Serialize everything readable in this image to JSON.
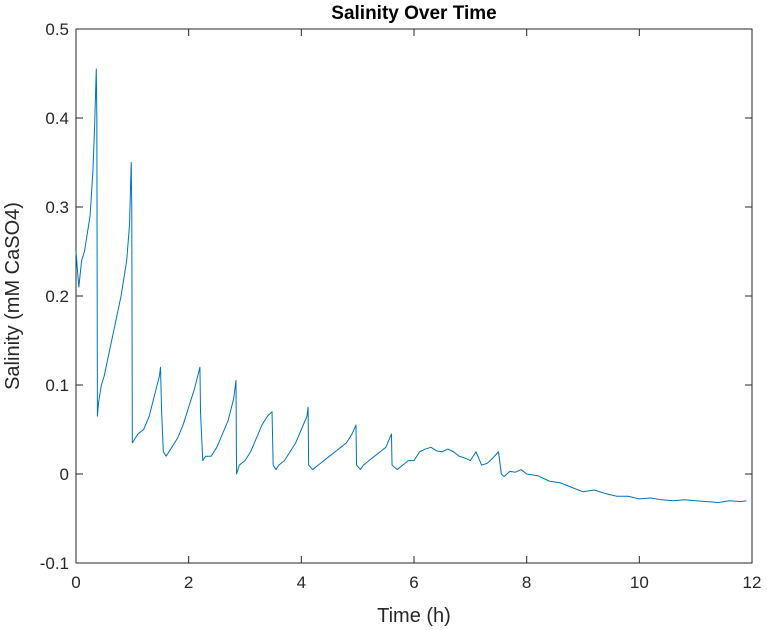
{
  "chart_data": {
    "type": "line",
    "title": "Salinity Over Time",
    "xlabel": "Time (h)",
    "ylabel": "Salinity (mM CaSO4)",
    "xlim": [
      0,
      12
    ],
    "ylim": [
      -0.1,
      0.5
    ],
    "x_ticks": [
      "0",
      "2",
      "4",
      "6",
      "8",
      "10",
      "12"
    ],
    "y_ticks": [
      "-0.1",
      "0",
      "0.1",
      "0.2",
      "0.3",
      "0.4",
      "0.5"
    ],
    "grid": false,
    "legend": "none",
    "line_color": "#0072BD",
    "series": [
      {
        "x": [
          0.0,
          0.05,
          0.1,
          0.15,
          0.2,
          0.25,
          0.3,
          0.33,
          0.36,
          0.37,
          0.38,
          0.4,
          0.45,
          0.5,
          0.6,
          0.7,
          0.8,
          0.9,
          0.95,
          0.98,
          0.99,
          1.0,
          1.05,
          1.1,
          1.2,
          1.3,
          1.4,
          1.48,
          1.5,
          1.52,
          1.55,
          1.6,
          1.7,
          1.8,
          1.9,
          2.0,
          2.1,
          2.2,
          2.21,
          2.25,
          2.3,
          2.4,
          2.5,
          2.6,
          2.7,
          2.8,
          2.84,
          2.85,
          2.9,
          3.0,
          3.1,
          3.2,
          3.3,
          3.4,
          3.48,
          3.5,
          3.55,
          3.6,
          3.7,
          3.8,
          3.9,
          4.0,
          4.1,
          4.12,
          4.13,
          4.2,
          4.3,
          4.4,
          4.5,
          4.6,
          4.7,
          4.8,
          4.9,
          4.97,
          4.98,
          5.05,
          5.1,
          5.2,
          5.3,
          5.4,
          5.5,
          5.6,
          5.61,
          5.7,
          5.8,
          5.9,
          6.0,
          6.1,
          6.2,
          6.3,
          6.4,
          6.5,
          6.6,
          6.7,
          6.8,
          6.9,
          7.0,
          7.1,
          7.2,
          7.3,
          7.4,
          7.5,
          7.55,
          7.6,
          7.7,
          7.8,
          7.9,
          8.0,
          8.2,
          8.4,
          8.6,
          8.8,
          9.0,
          9.2,
          9.4,
          9.6,
          9.8,
          10.0,
          10.2,
          10.4,
          10.6,
          10.8,
          11.0,
          11.2,
          11.4,
          11.6,
          11.8,
          11.9
        ],
        "y": [
          0.25,
          0.21,
          0.24,
          0.25,
          0.27,
          0.29,
          0.34,
          0.39,
          0.455,
          0.4,
          0.065,
          0.08,
          0.1,
          0.11,
          0.14,
          0.17,
          0.2,
          0.24,
          0.28,
          0.35,
          0.3,
          0.035,
          0.04,
          0.045,
          0.05,
          0.065,
          0.09,
          0.11,
          0.12,
          0.07,
          0.025,
          0.02,
          0.03,
          0.04,
          0.055,
          0.075,
          0.095,
          0.12,
          0.07,
          0.015,
          0.02,
          0.02,
          0.03,
          0.045,
          0.06,
          0.085,
          0.105,
          0.0,
          0.01,
          0.015,
          0.025,
          0.04,
          0.055,
          0.065,
          0.07,
          0.01,
          0.005,
          0.01,
          0.015,
          0.025,
          0.035,
          0.05,
          0.065,
          0.075,
          0.01,
          0.005,
          0.01,
          0.015,
          0.02,
          0.025,
          0.03,
          0.035,
          0.045,
          0.055,
          0.01,
          0.005,
          0.01,
          0.015,
          0.02,
          0.025,
          0.03,
          0.045,
          0.01,
          0.005,
          0.01,
          0.015,
          0.015,
          0.025,
          0.028,
          0.03,
          0.026,
          0.025,
          0.028,
          0.025,
          0.02,
          0.018,
          0.015,
          0.025,
          0.01,
          0.012,
          0.018,
          0.025,
          0.0,
          -0.003,
          0.003,
          0.002,
          0.005,
          0.0,
          -0.002,
          -0.008,
          -0.01,
          -0.015,
          -0.02,
          -0.018,
          -0.022,
          -0.025,
          -0.025,
          -0.028,
          -0.027,
          -0.029,
          -0.03,
          -0.029,
          -0.03,
          -0.031,
          -0.032,
          -0.03,
          -0.031,
          -0.03
        ]
      }
    ]
  }
}
